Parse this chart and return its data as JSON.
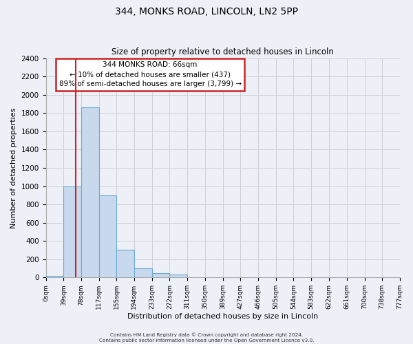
{
  "title": "344, MONKS ROAD, LINCOLN, LN2 5PP",
  "subtitle": "Size of property relative to detached houses in Lincoln",
  "xlabel": "Distribution of detached houses by size in Lincoln",
  "ylabel": "Number of detached properties",
  "bin_edges": [
    0,
    39,
    78,
    117,
    155,
    194,
    233,
    272,
    311,
    350,
    389,
    427,
    466,
    505,
    544,
    583,
    622,
    661,
    700,
    738,
    777
  ],
  "bin_labels": [
    "0sqm",
    "39sqm",
    "78sqm",
    "117sqm",
    "155sqm",
    "194sqm",
    "233sqm",
    "272sqm",
    "311sqm",
    "350sqm",
    "389sqm",
    "427sqm",
    "466sqm",
    "505sqm",
    "544sqm",
    "583sqm",
    "622sqm",
    "661sqm",
    "700sqm",
    "738sqm",
    "777sqm"
  ],
  "bar_heights": [
    20,
    1000,
    1860,
    900,
    300,
    100,
    50,
    30,
    0,
    0,
    0,
    0,
    0,
    0,
    0,
    0,
    0,
    0,
    0,
    0
  ],
  "bar_color": "#c8d9ee",
  "bar_edge_color": "#6aaad4",
  "ylim": [
    0,
    2400
  ],
  "yticks": [
    0,
    200,
    400,
    600,
    800,
    1000,
    1200,
    1400,
    1600,
    1800,
    2000,
    2200,
    2400
  ],
  "red_line_x": 66,
  "annotation_title": "344 MONKS ROAD: 66sqm",
  "annotation_line1": "← 10% of detached houses are smaller (437)",
  "annotation_line2": "89% of semi-detached houses are larger (3,799) →",
  "annotation_box_color": "#ffffff",
  "annotation_box_edge": "#cc2222",
  "red_line_color": "#cc2222",
  "grid_color": "#d0d0d8",
  "footer1": "Contains HM Land Registry data © Crown copyright and database right 2024.",
  "footer2": "Contains public sector information licensed under the Open Government Licence v3.0.",
  "bg_color": "#eef0f8",
  "plot_bg_color": "#eef0f8"
}
